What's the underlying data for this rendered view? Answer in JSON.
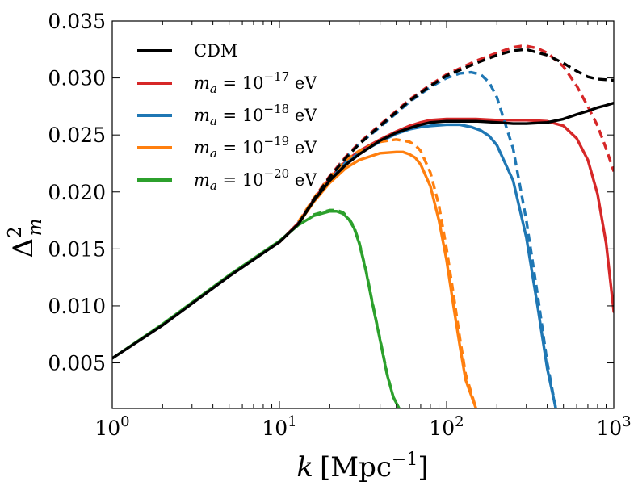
{
  "chart_data": {
    "type": "line",
    "title": "",
    "xlabel": {
      "var": "k",
      "unit": "[Mpc",
      "exp": "−1",
      "close": "]"
    },
    "ylabel": {
      "base": "Δ",
      "sup": "2",
      "sub": "m"
    },
    "xscale": "log",
    "xlim": [
      1,
      1000
    ],
    "ylim": [
      0.001,
      0.035
    ],
    "xticks": [
      {
        "value": 1,
        "base": "10",
        "exp": "0"
      },
      {
        "value": 10,
        "base": "10",
        "exp": "1"
      },
      {
        "value": 100,
        "base": "10",
        "exp": "2"
      },
      {
        "value": 1000,
        "base": "10",
        "exp": "3"
      }
    ],
    "yticks": [
      {
        "value": 0.005,
        "label": "0.005"
      },
      {
        "value": 0.01,
        "label": "0.010"
      },
      {
        "value": 0.015,
        "label": "0.015"
      },
      {
        "value": 0.02,
        "label": "0.020"
      },
      {
        "value": 0.025,
        "label": "0.025"
      },
      {
        "value": 0.03,
        "label": "0.030"
      },
      {
        "value": 0.035,
        "label": "0.035"
      }
    ],
    "legend_position": "top-left",
    "series": [
      {
        "id": "cdm",
        "name": "CDM",
        "color": "#000000",
        "solid": {
          "x": [
            1,
            2,
            5,
            10,
            13,
            16,
            20,
            25,
            30,
            40,
            50,
            60,
            70,
            80,
            100,
            120,
            150,
            200,
            250,
            300,
            400,
            500,
            600,
            700,
            800,
            900,
            1000
          ],
          "y": [
            0.0054,
            0.0083,
            0.0126,
            0.0156,
            0.0172,
            0.0192,
            0.021,
            0.0224,
            0.0233,
            0.0245,
            0.0252,
            0.0256,
            0.0259,
            0.0261,
            0.0262,
            0.0262,
            0.0262,
            0.0261,
            0.026,
            0.026,
            0.0261,
            0.0264,
            0.0268,
            0.0271,
            0.0274,
            0.0276,
            0.0278
          ]
        },
        "dashed": {
          "x": [
            13,
            16,
            20,
            25,
            30,
            40,
            50,
            60,
            80,
            100,
            150,
            200,
            250,
            300,
            400,
            500,
            600,
            700,
            800,
            1000
          ],
          "y": [
            0.0172,
            0.0193,
            0.0213,
            0.023,
            0.0242,
            0.0258,
            0.027,
            0.028,
            0.0293,
            0.0302,
            0.0313,
            0.032,
            0.0324,
            0.0325,
            0.032,
            0.0313,
            0.0306,
            0.0301,
            0.0299,
            0.0298
          ]
        }
      },
      {
        "id": "ma17",
        "name": {
          "lhs": "m",
          "sub": "a",
          "eq": " = 10",
          "exp": "−17",
          "unit": " eV"
        },
        "color": "#d62728",
        "solid": {
          "x": [
            10,
            13,
            16,
            20,
            25,
            30,
            40,
            50,
            60,
            70,
            80,
            100,
            120,
            150,
            200,
            250,
            300,
            400,
            500,
            600,
            700,
            800,
            900,
            1000
          ],
          "y": [
            0.0156,
            0.0173,
            0.0193,
            0.0212,
            0.0227,
            0.0236,
            0.0246,
            0.0253,
            0.0258,
            0.0261,
            0.0263,
            0.0264,
            0.0264,
            0.0264,
            0.0263,
            0.0263,
            0.0263,
            0.0262,
            0.0258,
            0.0247,
            0.0228,
            0.0198,
            0.0155,
            0.0095
          ]
        },
        "dashed": {
          "x": [
            13,
            16,
            20,
            25,
            30,
            40,
            50,
            60,
            80,
            100,
            150,
            200,
            250,
            280,
            300,
            350,
            400,
            500,
            600,
            700,
            800,
            900,
            1000
          ],
          "y": [
            0.0173,
            0.0194,
            0.0214,
            0.0231,
            0.0243,
            0.0259,
            0.0271,
            0.0281,
            0.0294,
            0.0303,
            0.0315,
            0.0322,
            0.0327,
            0.0328,
            0.0328,
            0.0326,
            0.0322,
            0.031,
            0.0293,
            0.0275,
            0.0258,
            0.0238,
            0.0218
          ]
        }
      },
      {
        "id": "ma18",
        "name": {
          "lhs": "m",
          "sub": "a",
          "eq": " = 10",
          "exp": "−18",
          "unit": " eV"
        },
        "color": "#1f77b4",
        "solid": {
          "x": [
            10,
            13,
            16,
            20,
            25,
            30,
            40,
            50,
            60,
            70,
            80,
            100,
            120,
            140,
            160,
            180,
            200,
            250,
            300,
            350,
            400,
            450
          ],
          "y": [
            0.0156,
            0.0172,
            0.0192,
            0.021,
            0.0226,
            0.0234,
            0.0244,
            0.0251,
            0.0255,
            0.0257,
            0.0258,
            0.0259,
            0.0259,
            0.0257,
            0.0254,
            0.0249,
            0.0241,
            0.021,
            0.016,
            0.01,
            0.0045,
            0.001
          ]
        },
        "dashed": {
          "x": [
            13,
            16,
            20,
            25,
            30,
            40,
            50,
            60,
            80,
            100,
            120,
            140,
            160,
            180,
            200,
            250,
            300,
            350,
            400,
            450
          ],
          "y": [
            0.0173,
            0.0193,
            0.0213,
            0.023,
            0.0242,
            0.0257,
            0.0269,
            0.0279,
            0.0292,
            0.03,
            0.0304,
            0.0305,
            0.0303,
            0.0296,
            0.0283,
            0.0238,
            0.0175,
            0.011,
            0.005,
            0.001
          ]
        }
      },
      {
        "id": "ma19",
        "name": {
          "lhs": "m",
          "sub": "a",
          "eq": " = 10",
          "exp": "−19",
          "unit": " eV"
        },
        "color": "#ff7f0e",
        "solid": {
          "x": [
            10,
            13,
            16,
            20,
            25,
            30,
            40,
            50,
            55,
            60,
            65,
            70,
            80,
            90,
            100,
            110,
            120,
            130,
            150
          ],
          "y": [
            0.0156,
            0.0172,
            0.0191,
            0.0208,
            0.0221,
            0.0228,
            0.0234,
            0.0235,
            0.0235,
            0.0233,
            0.023,
            0.0224,
            0.0205,
            0.0175,
            0.014,
            0.01,
            0.0065,
            0.0035,
            0.001
          ]
        },
        "dashed": {
          "x": [
            13,
            16,
            20,
            25,
            30,
            40,
            50,
            60,
            65,
            70,
            80,
            90,
            100,
            110,
            120,
            130,
            150
          ],
          "y": [
            0.0174,
            0.0194,
            0.0213,
            0.0228,
            0.0236,
            0.0244,
            0.0246,
            0.0244,
            0.0241,
            0.0236,
            0.0217,
            0.0188,
            0.015,
            0.011,
            0.0072,
            0.004,
            0.001
          ]
        }
      },
      {
        "id": "ma20",
        "name": {
          "lhs": "m",
          "sub": "a",
          "eq": " = 10",
          "exp": "−20",
          "unit": " eV"
        },
        "color": "#2ca02c",
        "solid": {
          "x": [
            1,
            2,
            5,
            10,
            13,
            16,
            20,
            22,
            24,
            26,
            28,
            30,
            33,
            36,
            40,
            44,
            48,
            52
          ],
          "y": [
            0.0054,
            0.0084,
            0.0127,
            0.0157,
            0.0171,
            0.0179,
            0.0183,
            0.0183,
            0.0181,
            0.0176,
            0.0168,
            0.0155,
            0.013,
            0.0102,
            0.007,
            0.004,
            0.002,
            0.001
          ]
        },
        "dashed": {
          "x": [
            16,
            20,
            22,
            24,
            26,
            28,
            30,
            33,
            36,
            40,
            44,
            48,
            52
          ],
          "y": [
            0.018,
            0.0184,
            0.0184,
            0.0182,
            0.0177,
            0.0169,
            0.0156,
            0.0131,
            0.0103,
            0.0071,
            0.0041,
            0.002,
            0.001
          ]
        }
      }
    ]
  }
}
